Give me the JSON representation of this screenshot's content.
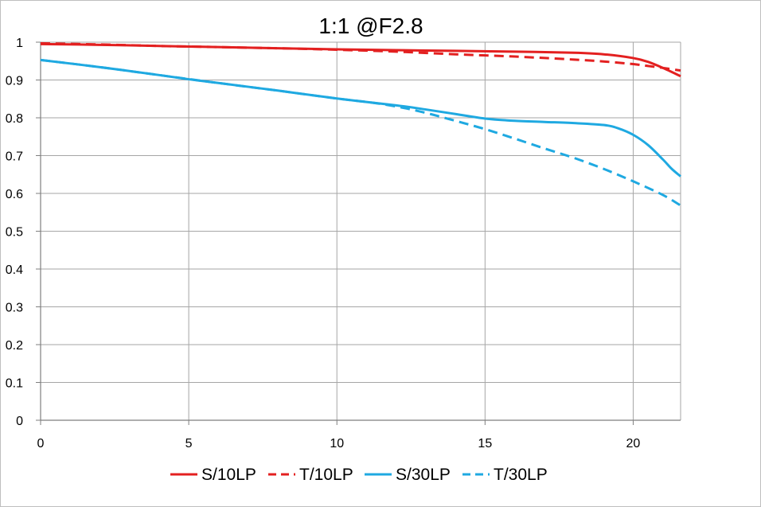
{
  "chart_data": {
    "type": "line",
    "title": "1:1  @F2.8",
    "xlabel": "",
    "ylabel": "",
    "xlim": [
      0,
      21.6
    ],
    "ylim": [
      0,
      1
    ],
    "x_ticks": [
      0,
      5,
      10,
      15,
      20
    ],
    "x_tick_labels": [
      "0",
      "5",
      "10",
      "15",
      "20"
    ],
    "y_ticks": [
      0,
      0.1,
      0.2,
      0.3,
      0.4,
      0.5,
      0.6,
      0.7,
      0.8,
      0.9,
      1
    ],
    "y_tick_labels": [
      "0",
      "0.1",
      "0.2",
      "0.3",
      "0.4",
      "0.5",
      "0.6",
      "0.7",
      "0.8",
      "0.9",
      "1"
    ],
    "grid": true,
    "legend_position": "bottom",
    "series": [
      {
        "name": "S/10LP",
        "color": "#e32020",
        "dash": "solid",
        "x": [
          0,
          2,
          4,
          6,
          8,
          10,
          12,
          14,
          16,
          18,
          19,
          20,
          20.5,
          21,
          21.6
        ],
        "y": [
          0.995,
          0.993,
          0.99,
          0.987,
          0.984,
          0.981,
          0.979,
          0.977,
          0.975,
          0.972,
          0.968,
          0.958,
          0.948,
          0.932,
          0.91
        ]
      },
      {
        "name": "T/10LP",
        "color": "#e32020",
        "dash": "dashed",
        "x": [
          0,
          2,
          4,
          6,
          8,
          10,
          12,
          14,
          16,
          18,
          19,
          20,
          20.5,
          21,
          21.6
        ],
        "y": [
          0.997,
          0.994,
          0.99,
          0.987,
          0.984,
          0.98,
          0.975,
          0.968,
          0.962,
          0.954,
          0.949,
          0.942,
          0.937,
          0.932,
          0.925
        ]
      },
      {
        "name": "S/30LP",
        "color": "#1fa9e1",
        "dash": "solid",
        "x": [
          0,
          2,
          4,
          5,
          6,
          8,
          10,
          12,
          13,
          14,
          15,
          16,
          17,
          18,
          19,
          19.5,
          20,
          20.5,
          21,
          21.3,
          21.6
        ],
        "y": [
          0.953,
          0.934,
          0.913,
          0.902,
          0.892,
          0.872,
          0.851,
          0.833,
          0.822,
          0.81,
          0.798,
          0.792,
          0.789,
          0.786,
          0.781,
          0.772,
          0.755,
          0.728,
          0.69,
          0.665,
          0.645
        ]
      },
      {
        "name": "T/30LP",
        "color": "#1fa9e1",
        "dash": "dashed",
        "x": [
          0,
          2,
          4,
          6,
          8,
          10,
          11,
          12,
          13,
          14,
          15,
          16,
          17,
          18,
          19,
          20,
          21,
          21.6
        ],
        "y": [
          0.953,
          0.934,
          0.913,
          0.892,
          0.872,
          0.851,
          0.842,
          0.83,
          0.813,
          0.792,
          0.77,
          0.745,
          0.719,
          0.694,
          0.665,
          0.632,
          0.596,
          0.568
        ]
      }
    ]
  }
}
